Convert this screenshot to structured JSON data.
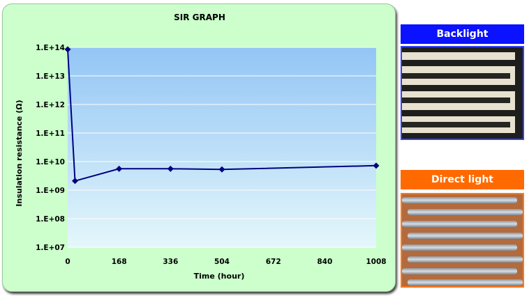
{
  "chart_data": {
    "type": "line",
    "title": "SIR GRAPH",
    "xlabel": "Time (hour)",
    "ylabel": "Insulation resistance (Ω)",
    "y_scale": "log",
    "xlim": [
      0,
      1008
    ],
    "ylim": [
      10000000.0,
      100000000000000.0
    ],
    "x_ticks": [
      0,
      168,
      336,
      504,
      672,
      840,
      1008
    ],
    "x_tick_labels": [
      "0",
      "168",
      "336",
      "504",
      "672",
      "840",
      "1008"
    ],
    "y_ticks": [
      10000000.0,
      100000000.0,
      1000000000.0,
      10000000000.0,
      100000000000.0,
      1000000000000.0,
      10000000000000.0,
      100000000000000.0
    ],
    "y_tick_labels": [
      "1.E+07",
      "1.E+08",
      "1.E+09",
      "1.E+10",
      "1.E+11",
      "1.E+12",
      "1.E+13",
      "1.E+14"
    ],
    "series": [
      {
        "x": [
          0,
          24,
          168,
          336,
          504,
          1008
        ],
        "y": [
          85000000000000.0,
          2100000000.0,
          5600000000.0,
          5600000000.0,
          5300000000.0,
          7200000000.0
        ]
      }
    ],
    "grid": true,
    "line_color": "#000080"
  },
  "photos": {
    "backlight": {
      "label": "Backlight",
      "color": "#0b12ff"
    },
    "direct_light": {
      "label": "Direct light",
      "color": "#ff6a00"
    }
  }
}
